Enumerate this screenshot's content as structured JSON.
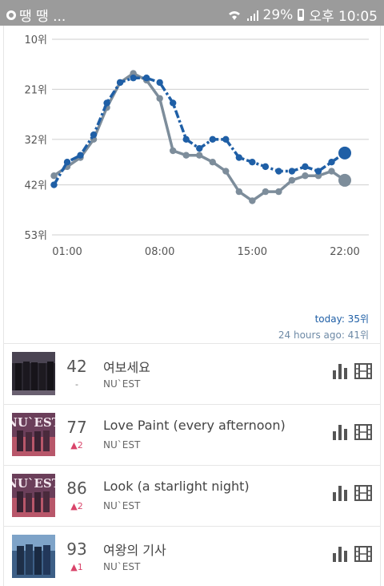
{
  "status_bar": {
    "left_text": "땡 땡 ...",
    "battery": "29%",
    "time": "오후 10:05"
  },
  "chart_data": {
    "type": "line",
    "y_ticks": [
      "10위",
      "21위",
      "32위",
      "42위",
      "53위"
    ],
    "y_tick_values": [
      10,
      21,
      32,
      42,
      53
    ],
    "ylim": [
      10,
      53
    ],
    "y_inverted": true,
    "x_ticks": [
      "01:00",
      "08:00",
      "15:00",
      "22:00"
    ],
    "x_tick_values": [
      1,
      8,
      15,
      22
    ],
    "xlim": [
      -1,
      22.5
    ],
    "series": [
      {
        "color": "#1f5fa6",
        "style": "dash-dot",
        "x": [
          0,
          1,
          2,
          3,
          4,
          5,
          6,
          7,
          8,
          9,
          10,
          11,
          12,
          13,
          14,
          15,
          16,
          17,
          18,
          19,
          20,
          21,
          22
        ],
        "values": [
          42,
          37,
          35.5,
          31,
          24,
          19.5,
          18.5,
          18.5,
          19.5,
          24,
          32,
          34,
          32,
          32,
          36,
          37,
          38,
          39,
          39,
          38,
          39,
          37,
          35
        ]
      },
      {
        "color": "#7d8d9b",
        "style": "solid",
        "x": [
          0,
          1,
          2,
          3,
          4,
          5,
          6,
          7,
          8,
          9,
          10,
          11,
          12,
          13,
          14,
          15,
          16,
          17,
          18,
          19,
          20,
          21,
          22
        ],
        "values": [
          40,
          38,
          36,
          32,
          25,
          19.5,
          17.5,
          19,
          23,
          34.5,
          35.5,
          35.5,
          37,
          39,
          43.5,
          45.5,
          43.5,
          43.5,
          41,
          40,
          40,
          39,
          41
        ]
      }
    ],
    "legend": {
      "today": "today: 35위",
      "ago": "24 hours ago: 41위"
    },
    "grid": true
  },
  "songs": [
    {
      "rank": "42",
      "change": "-",
      "change_type": "none",
      "title": "여보세요",
      "artist": "NU`EST",
      "art": "dark"
    },
    {
      "rank": "77",
      "change": "▲2",
      "change_type": "up",
      "title": "Love Paint (every afternoon)",
      "artist": "NU`EST",
      "art": "nuest"
    },
    {
      "rank": "86",
      "change": "▲2",
      "change_type": "up",
      "title": "Look (a starlight night)",
      "artist": "NU`EST",
      "art": "nuest"
    },
    {
      "rank": "93",
      "change": "▲1",
      "change_type": "up",
      "title": "여왕의 기사",
      "artist": "NU`EST",
      "art": "blue"
    }
  ],
  "icons": {
    "chart": "bar-chart-icon",
    "video": "film-icon"
  }
}
